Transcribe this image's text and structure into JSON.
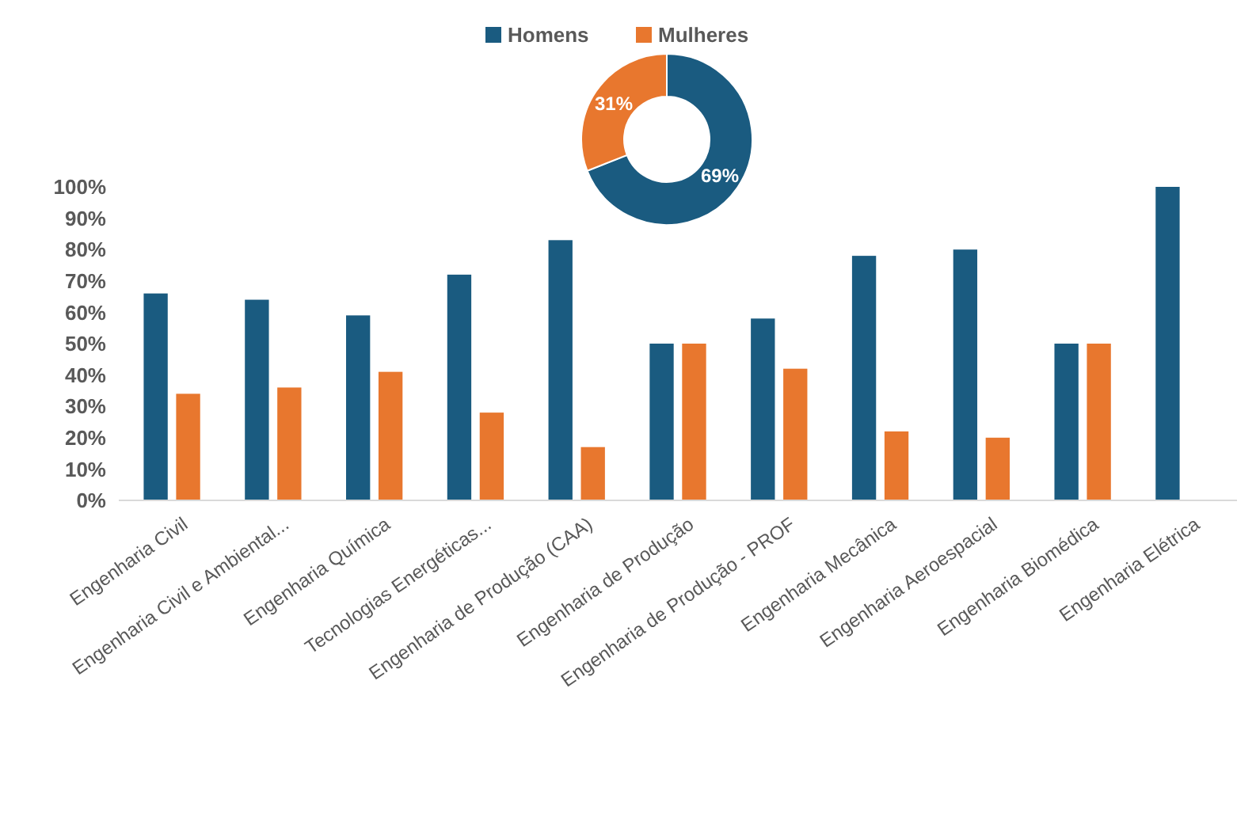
{
  "chart_data": [
    {
      "type": "bar",
      "categories": [
        "Engenharia Civil",
        "Engenharia Civil e Ambiental...",
        "Engenharia Química",
        "Tecnologias Energéticas...",
        "Engenharia de Produção (CAA)",
        "Engenharia de Produção",
        "Engenharia de Produção - PROF",
        "Engenharia Mecânica",
        "Engenharia Aeroespacial",
        "Engenharia Biomédica",
        "Engenharia Elétrica"
      ],
      "series": [
        {
          "name": "Homens",
          "color": "#1a5b80",
          "values": [
            66,
            64,
            59,
            72,
            83,
            50,
            58,
            78,
            80,
            50,
            100
          ]
        },
        {
          "name": "Mulheres",
          "color": "#e8772e",
          "values": [
            34,
            36,
            41,
            28,
            17,
            50,
            42,
            22,
            20,
            50,
            0
          ]
        }
      ],
      "ylim": [
        0,
        100
      ],
      "yticks": [
        {
          "value": 0,
          "label": "0%"
        },
        {
          "value": 10,
          "label": "10%"
        },
        {
          "value": 20,
          "label": "20%"
        },
        {
          "value": 30,
          "label": "30%"
        },
        {
          "value": 40,
          "label": "40%"
        },
        {
          "value": 50,
          "label": "50%"
        },
        {
          "value": 60,
          "label": "60%"
        },
        {
          "value": 70,
          "label": "70%"
        },
        {
          "value": 80,
          "label": "80%"
        },
        {
          "value": 90,
          "label": "90%"
        },
        {
          "value": 100,
          "label": "100%"
        }
      ],
      "grid": false,
      "legend": "top"
    },
    {
      "type": "donut",
      "categories": [
        null,
        null
      ],
      "values": [
        69,
        31
      ],
      "colors": [
        "#1a5b80",
        "#e8772e"
      ],
      "value_labels": [
        "69%",
        "31%"
      ]
    }
  ]
}
